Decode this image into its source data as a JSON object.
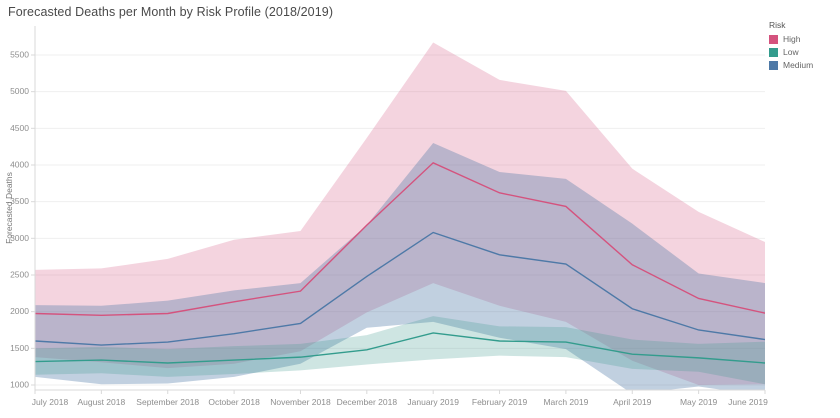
{
  "title": "Forecasted Deaths per Month by Risk Profile (2018/2019)",
  "legend": {
    "title": "Risk",
    "items": [
      {
        "label": "High",
        "color": "#d4537e"
      },
      {
        "label": "Low",
        "color": "#339c8d"
      },
      {
        "label": "Medium",
        "color": "#4e79a7"
      }
    ]
  },
  "chart_data": {
    "type": "line",
    "subtype": "forecast-lines-with-confidence-bands",
    "title": "Forecasted Deaths per Month by Risk Profile (2018/2019)",
    "xlabel": "",
    "ylabel": "Forecasted Deaths",
    "ylim": [
      1000,
      5500
    ],
    "y_ticks": [
      1000,
      1500,
      2000,
      2500,
      3000,
      3500,
      4000,
      4500,
      5000,
      5500
    ],
    "grid": "horizontal",
    "legend_position": "top-right",
    "categories": [
      "July 2018",
      "August 2018",
      "September 2018",
      "October 2018",
      "November 2018",
      "December 2018",
      "January 2019",
      "February 2019",
      "March 2019",
      "April 2019",
      "May 2019",
      "June 2019"
    ],
    "series": [
      {
        "name": "High",
        "color": "#d4537e",
        "band_fill": "rgba(212,83,126,0.25)",
        "values": [
          1975,
          1950,
          1975,
          2135,
          2280,
          3180,
          4030,
          3620,
          3435,
          2640,
          2180,
          1980
        ],
        "upper": [
          2570,
          2590,
          2720,
          2980,
          3100,
          4370,
          5670,
          5160,
          5010,
          3950,
          3360,
          2950
        ],
        "lower": [
          1380,
          1310,
          1230,
          1290,
          1460,
          1990,
          2390,
          2080,
          1860,
          1330,
          1000,
          1010
        ]
      },
      {
        "name": "Medium",
        "color": "#4e79a7",
        "band_fill": "rgba(78,121,167,0.35)",
        "values": [
          1600,
          1545,
          1585,
          1700,
          1840,
          2480,
          3080,
          2775,
          2650,
          2040,
          1750,
          1620
        ],
        "upper": [
          2090,
          2080,
          2150,
          2290,
          2390,
          3180,
          4300,
          3905,
          3810,
          3200,
          2520,
          2390
        ],
        "lower": [
          1110,
          1010,
          1020,
          1110,
          1290,
          1780,
          1860,
          1645,
          1490,
          880,
          980,
          850
        ]
      },
      {
        "name": "Low",
        "color": "#339c8d",
        "band_fill": "rgba(60,152,140,0.25)",
        "values": [
          1320,
          1340,
          1300,
          1340,
          1380,
          1480,
          1710,
          1600,
          1585,
          1420,
          1370,
          1300
        ],
        "upper": [
          1500,
          1520,
          1490,
          1530,
          1560,
          1680,
          1940,
          1800,
          1790,
          1620,
          1560,
          1590
        ],
        "lower": [
          1140,
          1160,
          1110,
          1150,
          1200,
          1280,
          1350,
          1400,
          1380,
          1220,
          1180,
          1010
        ]
      }
    ],
    "band_draw_order": [
      "High",
      "Medium",
      "Low"
    ],
    "line_draw_order": [
      "High",
      "Medium",
      "Low"
    ]
  }
}
